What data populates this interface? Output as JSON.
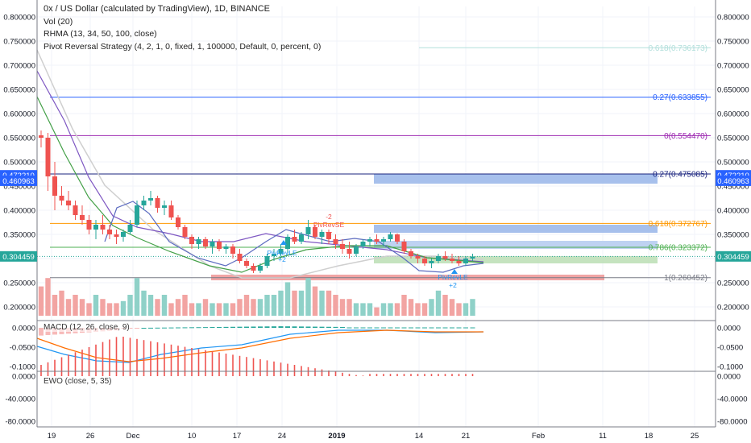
{
  "title": "0x / US Dollar (calculated by TradingView), 1D, BINANCE",
  "indicators": [
    "Vol (20)",
    "RHMA (13, 34, 50, 100, close)",
    "Pivot Reversal Strategy (4, 2, 1, 0, fixed, 1, 100000, Default, 0, percent, 0)"
  ],
  "macd_label": "MACD (12, 26, close, 9)",
  "ewo_label": "EWO (close, 5, 35)",
  "colors": {
    "up": "#26a69a",
    "down": "#ef5350",
    "macd": "#2196f3",
    "signal": "#ff6d00"
  },
  "chart_data": {
    "type": "candlestick",
    "y_ticks": [
      "0.800000",
      "0.750000",
      "0.700000",
      "0.650000",
      "0.600000",
      "0.550000",
      "0.500000",
      "0.450000",
      "0.400000",
      "0.350000",
      "0.300000",
      "0.250000",
      "0.200000"
    ],
    "x_ticks": [
      "19",
      "26",
      "Dec",
      "10",
      "17",
      "24",
      "2019",
      "14",
      "21",
      "Feb",
      "11",
      "18",
      "25"
    ],
    "price_badges": [
      {
        "value": "0.472210",
        "color": "#2962ff"
      },
      {
        "value": "0.460963",
        "color": "#2962ff"
      },
      {
        "value": "0.304459",
        "color": "#26a69a"
      }
    ],
    "fib_levels": [
      {
        "label": "0.618(0.736173)",
        "value": 0.736173,
        "color": "#b2dfdb"
      },
      {
        "label": "0.27(0.633855)",
        "value": 0.633855,
        "color": "#2962ff"
      },
      {
        "label": "0(0.554470)",
        "value": 0.55447,
        "color": "#9c27b0"
      },
      {
        "label": "0.27(0.475085)",
        "value": 0.475085,
        "color": "#1a237e"
      },
      {
        "label": "0.618(0.372767)",
        "value": 0.372767,
        "color": "#ff9800"
      },
      {
        "label": "0.786(0.323372)",
        "value": 0.323372,
        "color": "#4caf50"
      },
      {
        "label": "1(0.260452)",
        "value": 0.260452,
        "color": "#787b86"
      }
    ],
    "signals": [
      {
        "text": "PivRevLE",
        "color": "#2196f3"
      },
      {
        "text": "+2",
        "color": "#2196f3"
      },
      {
        "text": "-2",
        "color": "#ef5350"
      },
      {
        "text": "PivRevSE",
        "color": "#ef5350"
      },
      {
        "text": "PivRevLE",
        "color": "#2196f3"
      },
      {
        "text": "+2",
        "color": "#2196f3"
      }
    ],
    "macd_ticks": [
      "0.0000",
      "-0.0500",
      "-0.1000"
    ],
    "ewo_ticks": [
      "0.0000",
      "-40.0000",
      "-80.0000"
    ]
  }
}
